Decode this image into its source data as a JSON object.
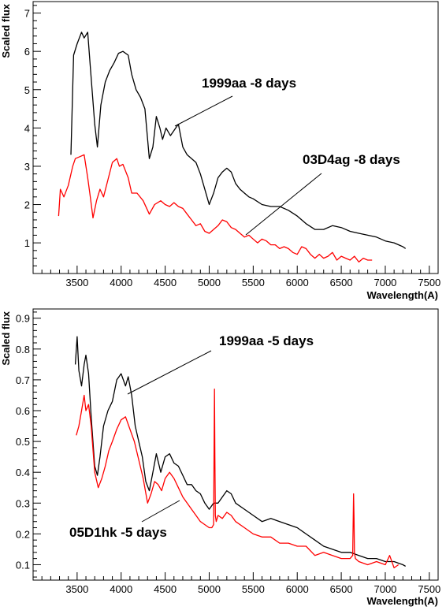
{
  "colors": {
    "black_series": "#000000",
    "red_series": "#ff0000",
    "axes": "#000000"
  },
  "chart_data": [
    {
      "type": "line",
      "xlabel": "Wavelength(A)",
      "ylabel": "Scaled flux",
      "xlim": [
        3000,
        7600
      ],
      "ylim": [
        0.2,
        7.3
      ],
      "xticks": [
        3500,
        4000,
        4500,
        5000,
        5500,
        6000,
        6500,
        7000,
        7500
      ],
      "yticks": [
        1,
        2,
        3,
        4,
        5,
        6,
        7
      ],
      "annotations": [
        {
          "text": "1999aa -8 days",
          "series": 0
        },
        {
          "text": "03D4ag -8 days",
          "series": 1
        }
      ],
      "series": [
        {
          "name": "1999aa -8 days",
          "color": "#000000",
          "x": [
            3430,
            3460,
            3500,
            3550,
            3580,
            3620,
            3650,
            3700,
            3730,
            3770,
            3820,
            3870,
            3920,
            3970,
            4020,
            4080,
            4120,
            4170,
            4220,
            4270,
            4320,
            4360,
            4400,
            4440,
            4470,
            4510,
            4560,
            4620,
            4650,
            4700,
            4750,
            4800,
            4850,
            4900,
            4950,
            5000,
            5050,
            5100,
            5150,
            5200,
            5250,
            5300,
            5350,
            5400,
            5450,
            5500,
            5600,
            5700,
            5800,
            5900,
            6000,
            6100,
            6200,
            6300,
            6400,
            6500,
            6600,
            6700,
            6800,
            6900,
            7000,
            7100,
            7200,
            7230
          ],
          "y": [
            3.3,
            5.9,
            6.2,
            6.5,
            6.35,
            6.5,
            5.6,
            4.1,
            3.5,
            4.6,
            5.2,
            5.5,
            5.7,
            5.95,
            6.0,
            5.9,
            5.4,
            5.0,
            4.8,
            4.5,
            3.2,
            3.5,
            4.3,
            4.0,
            3.7,
            4.0,
            3.8,
            4.0,
            4.1,
            3.5,
            3.3,
            3.2,
            3.1,
            2.8,
            2.4,
            2.0,
            2.3,
            2.7,
            2.85,
            2.95,
            2.85,
            2.55,
            2.4,
            2.3,
            2.2,
            2.15,
            2.0,
            1.95,
            1.95,
            1.85,
            1.7,
            1.5,
            1.35,
            1.35,
            1.45,
            1.4,
            1.3,
            1.25,
            1.2,
            1.15,
            1.05,
            1.0,
            0.9,
            0.85
          ]
        },
        {
          "name": "03D4ag -8 days",
          "color": "#ff0000",
          "x": [
            3290,
            3310,
            3350,
            3400,
            3450,
            3480,
            3530,
            3580,
            3620,
            3650,
            3680,
            3720,
            3760,
            3800,
            3850,
            3900,
            3950,
            3980,
            4020,
            4080,
            4120,
            4180,
            4250,
            4320,
            4380,
            4450,
            4500,
            4550,
            4600,
            4650,
            4700,
            4750,
            4800,
            4850,
            4900,
            4950,
            5000,
            5050,
            5100,
            5150,
            5200,
            5250,
            5300,
            5350,
            5400,
            5450,
            5500,
            5550,
            5600,
            5650,
            5700,
            5750,
            5800,
            5850,
            5900,
            5950,
            6000,
            6050,
            6100,
            6150,
            6200,
            6250,
            6300,
            6350,
            6400,
            6450,
            6500,
            6550,
            6600,
            6650,
            6700,
            6750,
            6800,
            6850
          ],
          "y": [
            1.7,
            2.4,
            2.2,
            2.5,
            3.0,
            3.2,
            3.25,
            3.3,
            2.7,
            2.2,
            1.65,
            2.1,
            2.4,
            2.2,
            2.65,
            3.1,
            3.2,
            3.0,
            3.05,
            2.7,
            2.3,
            2.3,
            2.1,
            1.75,
            2.0,
            2.1,
            2.0,
            1.95,
            2.05,
            1.95,
            1.9,
            1.75,
            1.6,
            1.45,
            1.5,
            1.3,
            1.25,
            1.35,
            1.45,
            1.6,
            1.55,
            1.4,
            1.35,
            1.25,
            1.15,
            1.2,
            1.1,
            1.0,
            1.1,
            1.05,
            0.95,
            0.95,
            0.85,
            0.9,
            0.85,
            0.75,
            0.7,
            0.9,
            0.85,
            0.7,
            0.6,
            0.7,
            0.6,
            0.65,
            0.75,
            0.55,
            0.65,
            0.6,
            0.55,
            0.65,
            0.5,
            0.6,
            0.55,
            0.55
          ]
        }
      ]
    },
    {
      "type": "line",
      "xlabel": "Wavelength(A)",
      "ylabel": "Scaled flux",
      "xlim": [
        3000,
        7600
      ],
      "ylim": [
        0.05,
        0.93
      ],
      "xticks": [
        3500,
        4000,
        4500,
        5000,
        5500,
        6000,
        6500,
        7000,
        7500
      ],
      "yticks": [
        0.1,
        0.2,
        0.3,
        0.4,
        0.5,
        0.6,
        0.7,
        0.8,
        0.9
      ],
      "annotations": [
        {
          "text": "1999aa -5 days",
          "series": 0
        },
        {
          "text": "05D1hk -5 days",
          "series": 1
        }
      ],
      "series": [
        {
          "name": "1999aa -5 days",
          "color": "#000000",
          "x": [
            3480,
            3500,
            3520,
            3550,
            3580,
            3600,
            3630,
            3660,
            3700,
            3730,
            3760,
            3800,
            3850,
            3900,
            3950,
            4000,
            4050,
            4080,
            4120,
            4160,
            4200,
            4240,
            4280,
            4320,
            4360,
            4400,
            4450,
            4500,
            4550,
            4600,
            4650,
            4700,
            4750,
            4800,
            4850,
            4900,
            4950,
            5000,
            5050,
            5100,
            5150,
            5200,
            5250,
            5300,
            5400,
            5500,
            5600,
            5700,
            5800,
            5900,
            6000,
            6100,
            6200,
            6300,
            6400,
            6500,
            6600,
            6700,
            6800,
            6900,
            7000,
            7100,
            7200,
            7230
          ],
          "y": [
            0.75,
            0.84,
            0.73,
            0.68,
            0.75,
            0.78,
            0.72,
            0.58,
            0.42,
            0.39,
            0.45,
            0.55,
            0.6,
            0.63,
            0.7,
            0.72,
            0.68,
            0.71,
            0.65,
            0.55,
            0.5,
            0.45,
            0.37,
            0.34,
            0.4,
            0.46,
            0.4,
            0.45,
            0.46,
            0.43,
            0.42,
            0.39,
            0.36,
            0.36,
            0.34,
            0.33,
            0.3,
            0.28,
            0.3,
            0.3,
            0.32,
            0.34,
            0.33,
            0.3,
            0.28,
            0.26,
            0.24,
            0.25,
            0.24,
            0.23,
            0.22,
            0.2,
            0.18,
            0.16,
            0.15,
            0.14,
            0.14,
            0.13,
            0.12,
            0.12,
            0.11,
            0.11,
            0.1,
            0.095
          ]
        },
        {
          "name": "05D1hk -5 days",
          "color": "#ff0000",
          "x": [
            3490,
            3520,
            3550,
            3580,
            3600,
            3630,
            3660,
            3700,
            3740,
            3780,
            3820,
            3860,
            3900,
            3950,
            4000,
            4050,
            4100,
            4150,
            4200,
            4250,
            4300,
            4340,
            4380,
            4420,
            4460,
            4500,
            4550,
            4600,
            4650,
            4700,
            4750,
            4800,
            4850,
            4900,
            4950,
            5000,
            5030,
            5050,
            5055,
            5060,
            5065,
            5070,
            5080,
            5100,
            5150,
            5200,
            5250,
            5300,
            5400,
            5500,
            5600,
            5700,
            5800,
            5900,
            6000,
            6100,
            6200,
            6300,
            6400,
            6500,
            6600,
            6630,
            6640,
            6645,
            6650,
            6660,
            6700,
            6800,
            6900,
            7000,
            7050,
            7100,
            7150
          ],
          "y": [
            0.52,
            0.55,
            0.6,
            0.65,
            0.6,
            0.62,
            0.55,
            0.4,
            0.35,
            0.38,
            0.42,
            0.47,
            0.5,
            0.54,
            0.57,
            0.58,
            0.54,
            0.5,
            0.44,
            0.38,
            0.3,
            0.33,
            0.37,
            0.36,
            0.34,
            0.38,
            0.4,
            0.38,
            0.35,
            0.32,
            0.3,
            0.28,
            0.26,
            0.24,
            0.23,
            0.22,
            0.22,
            0.23,
            0.45,
            0.67,
            0.45,
            0.26,
            0.24,
            0.26,
            0.25,
            0.27,
            0.26,
            0.24,
            0.22,
            0.2,
            0.19,
            0.19,
            0.17,
            0.17,
            0.16,
            0.16,
            0.13,
            0.14,
            0.13,
            0.12,
            0.12,
            0.13,
            0.33,
            0.25,
            0.14,
            0.12,
            0.11,
            0.1,
            0.11,
            0.1,
            0.13,
            0.09,
            0.1
          ]
        }
      ]
    }
  ]
}
